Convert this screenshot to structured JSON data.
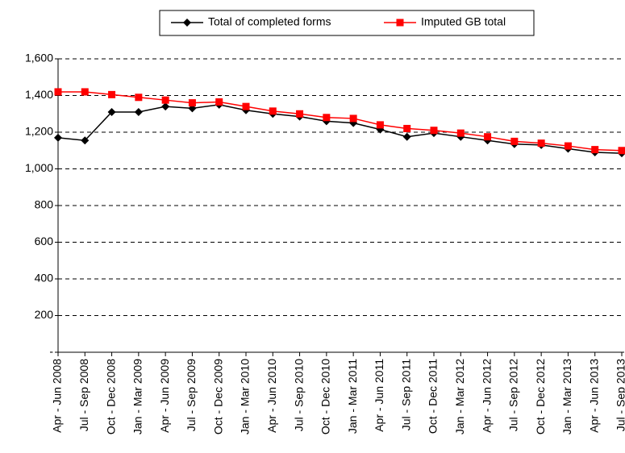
{
  "chart_data": {
    "type": "line",
    "categories": [
      "Apr - Jun 2008",
      "Jul - Sep 2008",
      "Oct - Dec 2008",
      "Jan - Mar 2009",
      "Apr - Jun 2009",
      "Jul - Sep 2009",
      "Oct - Dec 2009",
      "Jan - Mar 2010",
      "Apr - Jun 2010",
      "Jul - Sep 2010",
      "Oct - Dec 2010",
      "Jan - Mar 2011",
      "Apr - Jun 2011",
      "Jul - Sep 2011",
      "Oct - Dec 2011",
      "Jan - Mar 2012",
      "Apr - Jun 2012",
      "Jul - Sep 2012",
      "Oct - Dec 2012",
      "Jan - Mar 2013",
      "Apr - Jun 2013",
      "Jul - Sep 2013"
    ],
    "series": [
      {
        "name": "Total of completed forms",
        "color": "#000000",
        "marker": "diamond",
        "values": [
          1170,
          1155,
          1310,
          1310,
          1340,
          1330,
          1350,
          1320,
          1300,
          1285,
          1260,
          1250,
          1215,
          1175,
          1195,
          1175,
          1155,
          1135,
          1130,
          1110,
          1090,
          1085
        ]
      },
      {
        "name": "Imputed GB total",
        "color": "#ff0000",
        "marker": "square",
        "values": [
          1420,
          1420,
          1405,
          1390,
          1375,
          1360,
          1365,
          1340,
          1315,
          1300,
          1280,
          1275,
          1240,
          1220,
          1210,
          1195,
          1175,
          1150,
          1140,
          1125,
          1105,
          1100
        ]
      }
    ],
    "ylim": [
      0,
      1600
    ],
    "yticks": [
      {
        "value": 0,
        "label": "-"
      },
      200,
      400,
      600,
      800,
      {
        "value": 1000,
        "label": "1,000"
      },
      {
        "value": 1200,
        "label": "1,200"
      },
      {
        "value": 1400,
        "label": "1,400"
      },
      {
        "value": 1600,
        "label": "1,600"
      }
    ],
    "grid": true,
    "legend": "top"
  }
}
